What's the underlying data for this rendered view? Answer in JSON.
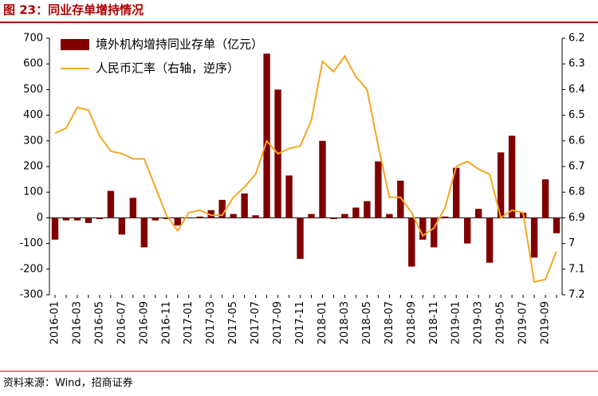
{
  "chart_data": {
    "type": "bar_line",
    "title": "图 23：同业存单增持情况",
    "source": "资料来源：Wind，招商证券",
    "categories": [
      "2016-01",
      null,
      "2016-03",
      null,
      "2016-05",
      null,
      "2016-07",
      null,
      "2016-09",
      null,
      "2016-11",
      null,
      "2017-01",
      null,
      "2017-03",
      null,
      "2017-05",
      null,
      "2017-07",
      null,
      "2017-09",
      null,
      "2017-11",
      null,
      "2018-01",
      null,
      "2018-03",
      null,
      "2018-05",
      null,
      "2018-07",
      null,
      "2018-09",
      null,
      "2018-11",
      null,
      "2019-01",
      null,
      "2019-03",
      null,
      "2019-05",
      null,
      "2019-07",
      null,
      "2019-09",
      null
    ],
    "series": [
      {
        "name": "境外机构增持同业存单（亿元）",
        "type": "bar",
        "color": "#800000",
        "values": [
          -85,
          -10,
          -10,
          -20,
          -5,
          105,
          -65,
          78,
          -115,
          -10,
          -5,
          -30,
          0,
          5,
          30,
          70,
          15,
          95,
          10,
          640,
          500,
          165,
          -160,
          15,
          300,
          -5,
          15,
          40,
          65,
          220,
          15,
          145,
          -190,
          -85,
          -115,
          5,
          195,
          -100,
          35,
          -175,
          255,
          320,
          20,
          -155,
          150,
          -60
        ]
      },
      {
        "name": "人民币汇率（右轴，逆序）",
        "type": "line",
        "axis": "y2",
        "color": "#f5a623",
        "values": [
          6.57,
          6.55,
          6.47,
          6.48,
          6.58,
          6.64,
          6.65,
          6.67,
          6.67,
          6.78,
          6.89,
          6.95,
          6.88,
          6.87,
          6.89,
          6.89,
          6.82,
          6.78,
          6.73,
          6.6,
          6.65,
          6.63,
          6.62,
          6.52,
          6.29,
          6.33,
          6.27,
          6.35,
          6.4,
          6.62,
          6.82,
          6.82,
          6.88,
          6.97,
          6.94,
          6.86,
          6.7,
          6.68,
          6.71,
          6.73,
          6.9,
          6.87,
          6.88,
          7.15,
          7.14,
          7.03
        ]
      }
    ],
    "ylim": [
      -300,
      700
    ],
    "yticks": [
      -300,
      -200,
      -100,
      0,
      100,
      200,
      300,
      400,
      500,
      600,
      700
    ],
    "y2lim": [
      6.2,
      7.2
    ],
    "y2ticks": [
      6.2,
      6.3,
      6.4,
      6.5,
      6.6,
      6.7,
      6.8,
      6.9,
      7,
      7.1,
      7.2
    ],
    "y2_inverted": true,
    "grid": false,
    "legend": "upper left"
  }
}
